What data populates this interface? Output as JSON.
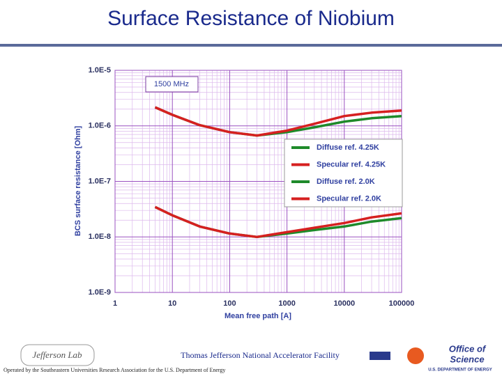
{
  "slide": {
    "title": "Surface Resistance of Niobium",
    "footer": {
      "facility": "Thomas Jefferson National Accelerator Facility",
      "operator": "Operated by the Southeastern Universities Research Association for the U.S. Department of Energy",
      "left_logo": "Jefferson Lab",
      "right_logo_line1": "Office of",
      "right_logo_line2": "Science",
      "right_logo_line3": "U.S. DEPARTMENT OF ENERGY"
    }
  },
  "chart_data": {
    "type": "line",
    "annotation": "1500 MHz",
    "xlabel": "Mean free path [A]",
    "ylabel": "BCS surface resistance [Ohm]",
    "xscale": "log",
    "yscale": "log",
    "grid": true,
    "legend": "center right",
    "xlim": [
      1,
      100000
    ],
    "xticks": [
      1,
      10,
      100,
      1000,
      10000,
      100000
    ],
    "ylim": [
      1e-09,
      1e-05
    ],
    "yticks": [
      {
        "value": 1e-09,
        "label": "1.0E-9"
      },
      {
        "value": 1e-08,
        "label": "1.0E-8"
      },
      {
        "value": 1e-07,
        "label": "1.0E-7"
      },
      {
        "value": 1e-06,
        "label": "1.0E-6"
      },
      {
        "value": 1e-05,
        "label": "1.0E-5"
      }
    ],
    "x": [
      5,
      10,
      30,
      100,
      300,
      1000,
      3000,
      10000,
      30000,
      100000
    ],
    "series": [
      {
        "name": "Diffuse ref. 4.25K",
        "color": "#1e8a2a",
        "values": [
          2.16e-06,
          1.58e-06,
          1.03e-06,
          7.7e-07,
          6.7e-07,
          7.7e-07,
          9.4e-07,
          1.19e-06,
          1.37e-06,
          1.5e-06
        ]
      },
      {
        "name": "Specular ref. 4.25K",
        "color": "#d62020",
        "values": [
          2.16e-06,
          1.58e-06,
          1.03e-06,
          7.7e-07,
          6.7e-07,
          8.2e-07,
          1.09e-06,
          1.5e-06,
          1.73e-06,
          1.89e-06
        ]
      },
      {
        "name": "Diffuse ref. 2.0K",
        "color": "#1e8a2a",
        "values": [
          3.46e-08,
          2.45e-08,
          1.54e-08,
          1.15e-08,
          1e-08,
          1.15e-08,
          1.33e-08,
          1.54e-08,
          1.89e-08,
          2.18e-08
        ]
      },
      {
        "name": "Specular ref. 2.0K",
        "color": "#d62020",
        "values": [
          3.46e-08,
          2.45e-08,
          1.54e-08,
          1.15e-08,
          1e-08,
          1.22e-08,
          1.46e-08,
          1.78e-08,
          2.25e-08,
          2.66e-08
        ]
      }
    ]
  }
}
